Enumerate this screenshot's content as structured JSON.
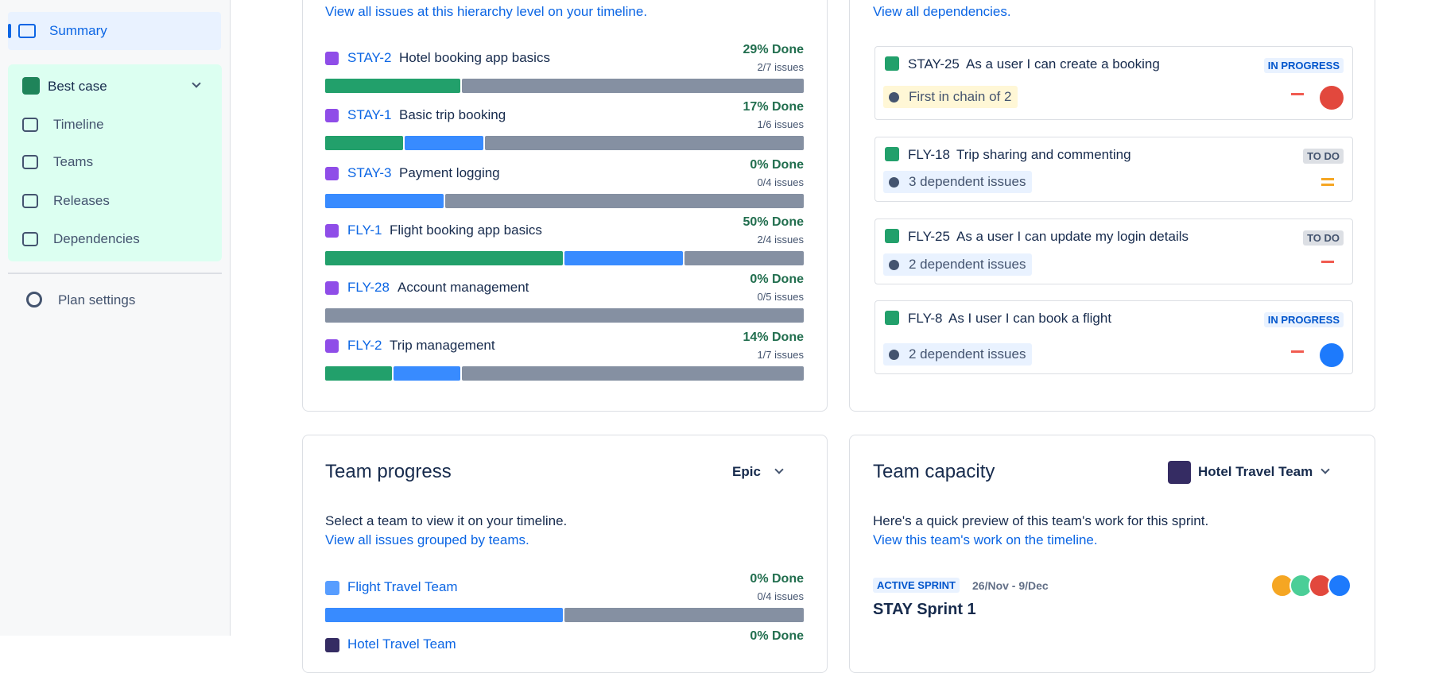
{
  "sidebar": {
    "summary": "Summary",
    "plan": "Best case",
    "items": [
      "Timeline",
      "Teams",
      "Releases",
      "Dependencies"
    ],
    "settings": "Plan settings"
  },
  "progress": {
    "link": "View all issues at this hierarchy level on your timeline.",
    "issues": [
      {
        "key": "STAY-2",
        "title": "Hotel booking app basics",
        "done": "29% Done",
        "count": "2/7 issues",
        "bar": [
          2,
          0,
          5
        ]
      },
      {
        "key": "STAY-1",
        "title": "Basic trip booking",
        "done": "17% Done",
        "count": "1/6 issues",
        "bar": [
          1,
          1,
          4
        ]
      },
      {
        "key": "STAY-3",
        "title": "Payment logging",
        "done": "0% Done",
        "count": "0/4 issues",
        "bar": [
          0,
          1,
          3
        ]
      },
      {
        "key": "FLY-1",
        "title": "Flight booking app basics",
        "done": "50% Done",
        "count": "2/4 issues",
        "bar": [
          2,
          1,
          1
        ]
      },
      {
        "key": "FLY-28",
        "title": "Account management",
        "done": "0% Done",
        "count": "0/5 issues",
        "bar": [
          0,
          0,
          5
        ]
      },
      {
        "key": "FLY-2",
        "title": "Trip management",
        "done": "14% Done",
        "count": "1/7 issues",
        "bar": [
          1,
          1,
          5
        ]
      }
    ]
  },
  "dependencies": {
    "link": "View all dependencies.",
    "issues": [
      {
        "key": "STAY-25",
        "title": "As a user I can create a booking",
        "status": "IN PROGRESS",
        "note": "First in chain of 2"
      },
      {
        "key": "FLY-18",
        "title": "Trip sharing and commenting",
        "status": "TO DO",
        "note": "3 dependent issues"
      },
      {
        "key": "FLY-25",
        "title": "As a user I can update my login details",
        "status": "TO DO",
        "note": "2 dependent issues"
      },
      {
        "key": "FLY-8",
        "title": "As I user I can book a flight",
        "status": "IN PROGRESS",
        "note": "2 dependent issues"
      }
    ]
  },
  "team_progress": {
    "title": "Team progress",
    "group": "Epic",
    "text": "Select a team to view it on your timeline.",
    "link": "View all issues grouped by teams.",
    "teams": [
      {
        "name": "Flight Travel Team",
        "done": "0% Done",
        "count": "0/4 issues",
        "bar": [
          0,
          2,
          2
        ]
      },
      {
        "name": "Hotel Travel Team",
        "done": "0% Done"
      }
    ]
  },
  "team_capacity": {
    "title": "Team capacity",
    "team": "Hotel Travel Team",
    "text": "Here's a quick preview of this team's work for this sprint.",
    "link": "View this team's work on the timeline.",
    "sprint_badge": "ACTIVE SPRINT",
    "dates": "26/Nov - 9/Dec",
    "sprint": "STAY Sprint 1"
  }
}
